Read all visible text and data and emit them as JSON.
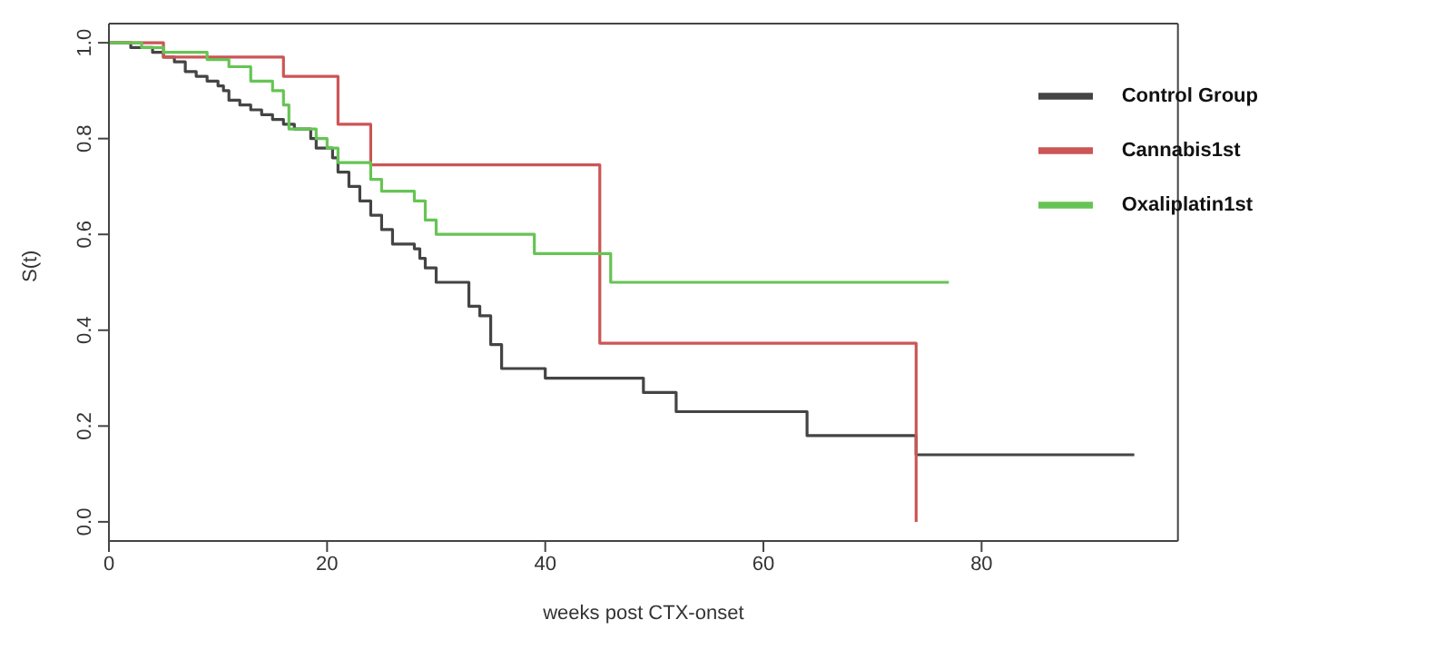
{
  "chart_data": {
    "type": "step",
    "xlabel": "weeks post CTX-onset",
    "ylabel": "S(t)",
    "xlim": [
      0,
      98
    ],
    "ylim": [
      -0.04,
      1.04
    ],
    "xticks": [
      0,
      20,
      40,
      60,
      80
    ],
    "yticks": [
      {
        "value": 0,
        "label": "0.0"
      },
      {
        "value": 0.2,
        "label": "0.2"
      },
      {
        "value": 0.4,
        "label": "0.4"
      },
      {
        "value": 0.6,
        "label": "0.6"
      },
      {
        "value": 0.8,
        "label": "0.8"
      },
      {
        "value": 1,
        "label": "1.0"
      }
    ],
    "grid": false,
    "legend": "top right",
    "series": [
      {
        "name": "Control Group",
        "color": "#444444",
        "x": [
          0,
          2,
          4,
          5,
          6,
          7,
          8,
          9,
          10,
          10.5,
          11,
          12,
          13,
          14,
          15,
          16,
          17,
          18.5,
          19,
          20.5,
          21,
          22,
          23,
          24,
          25,
          26,
          28,
          28.5,
          29,
          30,
          33,
          34,
          35,
          36,
          40,
          49,
          52,
          64,
          74,
          94
        ],
        "values": [
          1,
          0.99,
          0.98,
          0.97,
          0.96,
          0.94,
          0.93,
          0.92,
          0.91,
          0.9,
          0.88,
          0.87,
          0.86,
          0.85,
          0.84,
          0.83,
          0.82,
          0.8,
          0.78,
          0.76,
          0.73,
          0.7,
          0.67,
          0.64,
          0.61,
          0.58,
          0.57,
          0.55,
          0.53,
          0.5,
          0.45,
          0.43,
          0.37,
          0.32,
          0.3,
          0.27,
          0.23,
          0.18,
          0.14,
          0.14
        ]
      },
      {
        "name": "Cannabis1st",
        "color": "#cc5555",
        "x": [
          0,
          5,
          16,
          21,
          24,
          45,
          74
        ],
        "values": [
          1,
          0.97,
          0.93,
          0.83,
          0.745,
          0.373,
          0
        ]
      },
      {
        "name": "Oxaliplatin1st",
        "color": "#66c455",
        "x": [
          0,
          3,
          5,
          9,
          11,
          13,
          15,
          16,
          16.5,
          19,
          20,
          21,
          24,
          25,
          28,
          29,
          30,
          39,
          46,
          77
        ],
        "values": [
          1,
          0.99,
          0.98,
          0.965,
          0.95,
          0.92,
          0.9,
          0.87,
          0.82,
          0.8,
          0.78,
          0.75,
          0.715,
          0.69,
          0.67,
          0.63,
          0.6,
          0.56,
          0.5,
          0.5
        ]
      }
    ]
  }
}
